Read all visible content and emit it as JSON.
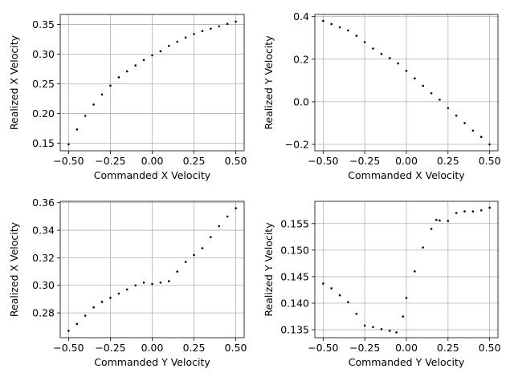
{
  "chart_data": [
    {
      "type": "scatter",
      "xlabel": "Commanded X Velocity",
      "ylabel": "Realized X Velocity",
      "xlim": [
        -0.55,
        0.55
      ],
      "ylim": [
        0.137,
        0.367
      ],
      "xticks": [
        -0.5,
        -0.25,
        0.0,
        0.25,
        0.5
      ],
      "xtick_labels": [
        "−0.50",
        "−0.25",
        "0.00",
        "0.25",
        "0.50"
      ],
      "yticks": [
        0.15,
        0.2,
        0.25,
        0.3,
        0.35
      ],
      "ytick_labels": [
        "0.15",
        "0.20",
        "0.25",
        "0.30",
        "0.35"
      ],
      "grid": true,
      "marker_color": "#000000",
      "x": [
        -0.5,
        -0.45,
        -0.4,
        -0.35,
        -0.3,
        -0.25,
        -0.2,
        -0.15,
        -0.1,
        -0.05,
        0.0,
        0.05,
        0.1,
        0.15,
        0.2,
        0.25,
        0.3,
        0.35,
        0.4,
        0.45,
        0.5
      ],
      "y": [
        0.148,
        0.173,
        0.196,
        0.215,
        0.232,
        0.247,
        0.261,
        0.271,
        0.281,
        0.29,
        0.298,
        0.305,
        0.314,
        0.321,
        0.328,
        0.334,
        0.339,
        0.343,
        0.347,
        0.351,
        0.355
      ]
    },
    {
      "type": "scatter",
      "xlabel": "Commanded X Velocity",
      "ylabel": "Realized Y Velocity",
      "xlim": [
        -0.55,
        0.55
      ],
      "ylim": [
        -0.23,
        0.41
      ],
      "xticks": [
        -0.5,
        -0.25,
        0.0,
        0.25,
        0.5
      ],
      "xtick_labels": [
        "−0.50",
        "−0.25",
        "0.00",
        "0.25",
        "0.50"
      ],
      "yticks": [
        -0.2,
        0.0,
        0.2,
        0.4
      ],
      "ytick_labels": [
        "−0.2",
        "0.0",
        "0.2",
        "0.4"
      ],
      "grid": true,
      "marker_color": "#000000",
      "x": [
        -0.5,
        -0.45,
        -0.4,
        -0.35,
        -0.3,
        -0.25,
        -0.2,
        -0.15,
        -0.1,
        -0.05,
        0.0,
        0.05,
        0.1,
        0.15,
        0.2,
        0.25,
        0.3,
        0.35,
        0.4,
        0.45,
        0.5
      ],
      "y": [
        0.38,
        0.365,
        0.35,
        0.335,
        0.31,
        0.28,
        0.25,
        0.225,
        0.205,
        0.18,
        0.145,
        0.11,
        0.075,
        0.04,
        0.01,
        -0.03,
        -0.065,
        -0.1,
        -0.135,
        -0.165,
        -0.2
      ]
    },
    {
      "type": "scatter",
      "xlabel": "Commanded Y Velocity",
      "ylabel": "Realized X Velocity",
      "xlim": [
        -0.55,
        0.55
      ],
      "ylim": [
        0.262,
        0.361
      ],
      "xticks": [
        -0.5,
        -0.25,
        0.0,
        0.25,
        0.5
      ],
      "xtick_labels": [
        "−0.50",
        "−0.25",
        "0.00",
        "0.25",
        "0.50"
      ],
      "yticks": [
        0.28,
        0.3,
        0.32,
        0.34,
        0.36
      ],
      "ytick_labels": [
        "0.28",
        "0.30",
        "0.32",
        "0.34",
        "0.36"
      ],
      "grid": true,
      "marker_color": "#000000",
      "x": [
        -0.5,
        -0.45,
        -0.4,
        -0.35,
        -0.3,
        -0.25,
        -0.2,
        -0.15,
        -0.1,
        -0.05,
        0.0,
        0.05,
        0.1,
        0.15,
        0.2,
        0.25,
        0.3,
        0.35,
        0.4,
        0.45,
        0.5
      ],
      "y": [
        0.267,
        0.272,
        0.278,
        0.284,
        0.288,
        0.291,
        0.294,
        0.297,
        0.3,
        0.302,
        0.301,
        0.302,
        0.303,
        0.31,
        0.317,
        0.322,
        0.327,
        0.335,
        0.343,
        0.35,
        0.356
      ]
    },
    {
      "type": "scatter",
      "xlabel": "Commanded Y Velocity",
      "ylabel": "Realized Y Velocity",
      "xlim": [
        -0.55,
        0.55
      ],
      "ylim": [
        0.1335,
        0.1592
      ],
      "xticks": [
        -0.5,
        -0.25,
        0.0,
        0.25,
        0.5
      ],
      "xtick_labels": [
        "−0.50",
        "−0.25",
        "0.00",
        "0.25",
        "0.50"
      ],
      "yticks": [
        0.135,
        0.14,
        0.145,
        0.15,
        0.155
      ],
      "ytick_labels": [
        "0.135",
        "0.140",
        "0.145",
        "0.150",
        "0.155"
      ],
      "grid": true,
      "marker_color": "#000000",
      "x": [
        -0.5,
        -0.45,
        -0.4,
        -0.35,
        -0.3,
        -0.25,
        -0.2,
        -0.15,
        -0.1,
        -0.06,
        -0.02,
        0.0,
        0.05,
        0.1,
        0.15,
        0.18,
        0.2,
        0.25,
        0.3,
        0.35,
        0.4,
        0.45,
        0.5
      ],
      "y": [
        0.1437,
        0.1428,
        0.1415,
        0.1402,
        0.138,
        0.1358,
        0.1355,
        0.1351,
        0.1348,
        0.1345,
        0.1375,
        0.141,
        0.146,
        0.1505,
        0.154,
        0.1557,
        0.1556,
        0.1555,
        0.157,
        0.1573,
        0.1573,
        0.1575,
        0.158
      ]
    }
  ]
}
